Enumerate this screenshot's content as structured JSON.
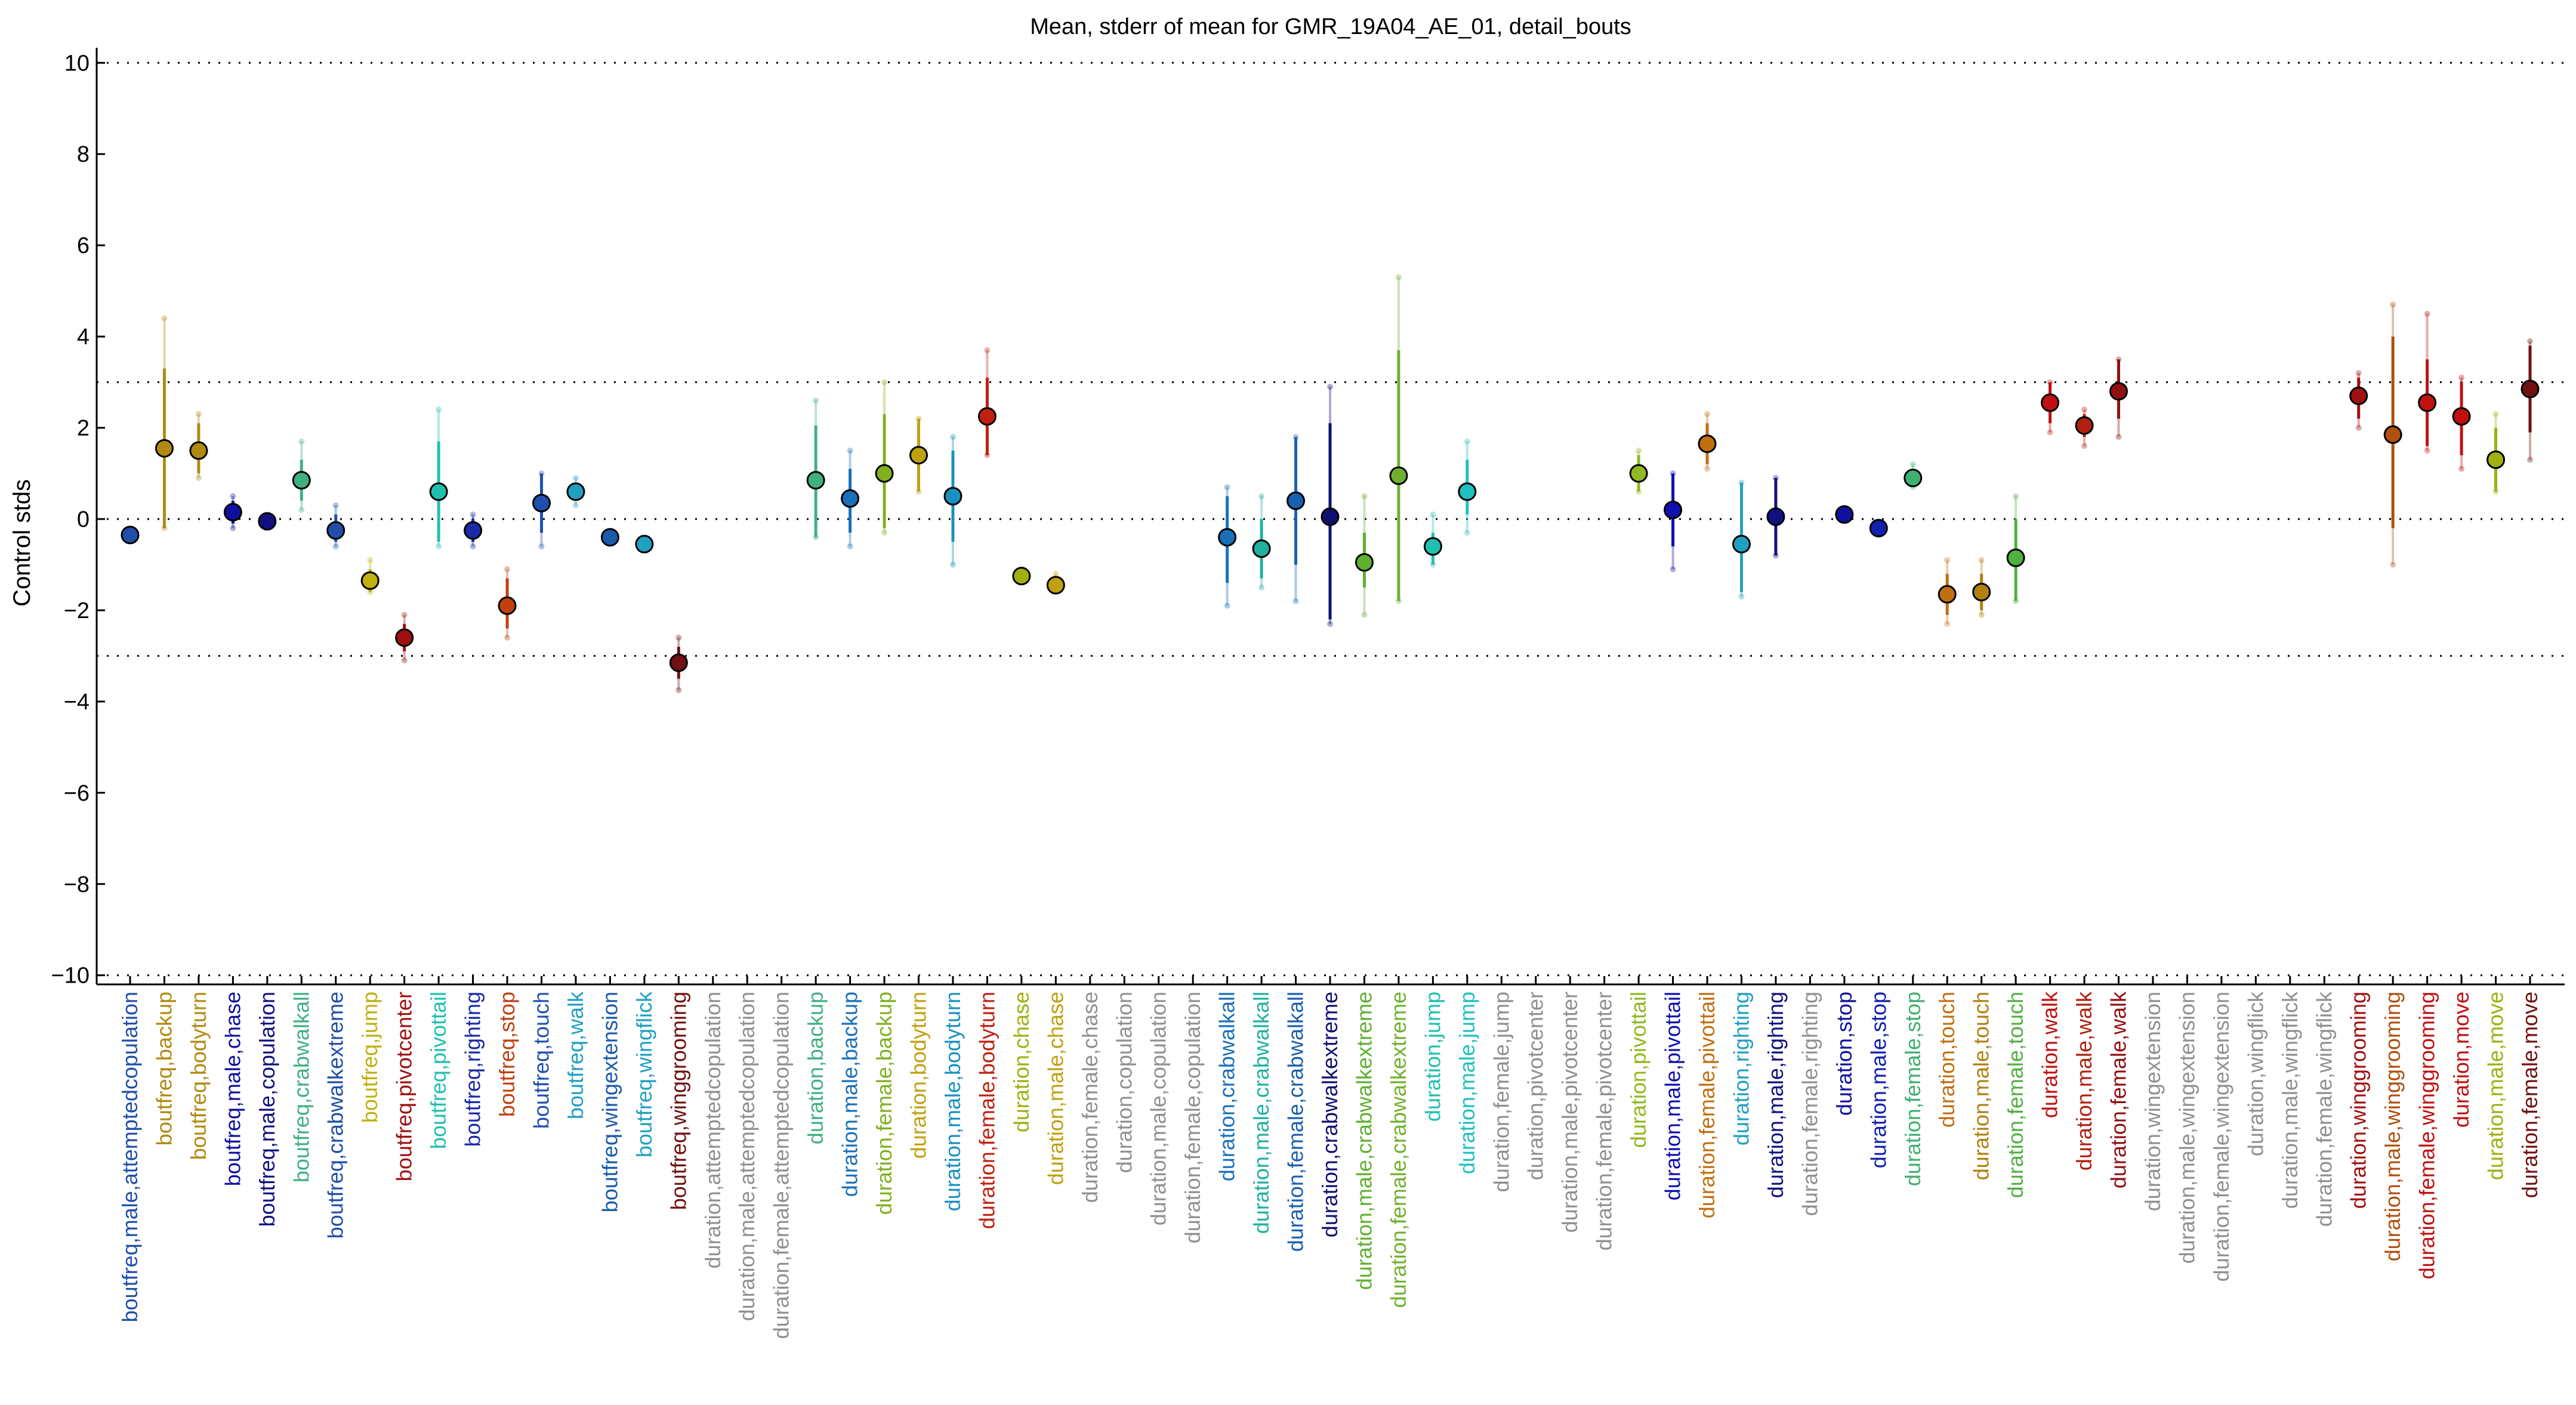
{
  "chart_data": {
    "type": "scatter",
    "title": "Mean, stderr of mean for GMR_19A04_AE_01, detail_bouts",
    "xlabel": "",
    "ylabel": "Control stds",
    "ylim": [
      -10.2,
      10.2
    ],
    "yticks": [
      10,
      8,
      6,
      4,
      2,
      0,
      -2,
      -4,
      -6,
      -8,
      -10
    ],
    "reference_lines": [
      10,
      3,
      0,
      -3,
      -10
    ],
    "grid": false,
    "legend": "none",
    "categories": [
      {
        "label": "boutfreq,male,attemptedcopulation",
        "color": "#1f4fa8",
        "mean": -0.35,
        "err_lo": -0.35,
        "err_hi": -0.35,
        "ci_lo": -0.35,
        "ci_hi": -0.35
      },
      {
        "label": "boutfreq,backup",
        "color": "#b08a10",
        "mean": 1.55,
        "err_lo": -0.2,
        "err_hi": 3.3,
        "ci_lo": -0.2,
        "ci_hi": 4.4
      },
      {
        "label": "boutfreq,bodyturn",
        "color": "#b08a10",
        "mean": 1.5,
        "err_lo": 1.0,
        "err_hi": 2.1,
        "ci_lo": 0.9,
        "ci_hi": 2.3
      },
      {
        "label": "boutfreq,male,chase",
        "color": "#1010a0",
        "mean": 0.15,
        "err_lo": -0.1,
        "err_hi": 0.4,
        "ci_lo": -0.2,
        "ci_hi": 0.5
      },
      {
        "label": "boutfreq,male,copulation",
        "color": "#101080",
        "mean": -0.05,
        "err_lo": -0.05,
        "err_hi": -0.05,
        "ci_lo": -0.05,
        "ci_hi": -0.05
      },
      {
        "label": "boutfreq,crabwalkall",
        "color": "#40b080",
        "mean": 0.85,
        "err_lo": 0.4,
        "err_hi": 1.3,
        "ci_lo": 0.2,
        "ci_hi": 1.7
      },
      {
        "label": "boutfreq,crabwalkextreme",
        "color": "#1f4fa8",
        "mean": -0.25,
        "err_lo": -0.5,
        "err_hi": 0.1,
        "ci_lo": -0.6,
        "ci_hi": 0.3
      },
      {
        "label": "boutfreq,jump",
        "color": "#c0b010",
        "mean": -1.35,
        "err_lo": -1.6,
        "err_hi": -1.1,
        "ci_lo": -1.6,
        "ci_hi": -0.9
      },
      {
        "label": "boutfreq,pivotcenter",
        "color": "#a01010",
        "mean": -2.6,
        "err_lo": -2.9,
        "err_hi": -2.3,
        "ci_lo": -3.1,
        "ci_hi": -2.1
      },
      {
        "label": "boutfreq,pivottail",
        "color": "#20c0b0",
        "mean": 0.6,
        "err_lo": -0.5,
        "err_hi": 1.7,
        "ci_lo": -0.6,
        "ci_hi": 2.4
      },
      {
        "label": "boutfreq,righting",
        "color": "#1a2aa8",
        "mean": -0.25,
        "err_lo": -0.5,
        "err_hi": 0.0,
        "ci_lo": -0.6,
        "ci_hi": 0.1
      },
      {
        "label": "boutfreq,stop",
        "color": "#c04010",
        "mean": -1.9,
        "err_lo": -2.4,
        "err_hi": -1.3,
        "ci_lo": -2.6,
        "ci_hi": -1.1
      },
      {
        "label": "boutfreq,touch",
        "color": "#1f50b0",
        "mean": 0.35,
        "err_lo": -0.3,
        "err_hi": 1.0,
        "ci_lo": -0.6,
        "ci_hi": 1.0
      },
      {
        "label": "boutfreq,walk",
        "color": "#20a0c0",
        "mean": 0.6,
        "err_lo": 0.4,
        "err_hi": 0.8,
        "ci_lo": 0.3,
        "ci_hi": 0.9
      },
      {
        "label": "boutfreq,wingextension",
        "color": "#1a5aa8",
        "mean": -0.4,
        "err_lo": -0.4,
        "err_hi": -0.4,
        "ci_lo": -0.4,
        "ci_hi": -0.4
      },
      {
        "label": "boutfreq,wingflick",
        "color": "#20a0c0",
        "mean": -0.55,
        "err_lo": -0.55,
        "err_hi": -0.55,
        "ci_lo": -0.55,
        "ci_hi": -0.55
      },
      {
        "label": "boutfreq,winggrooming",
        "color": "#701010",
        "mean": -3.15,
        "err_lo": -3.5,
        "err_hi": -2.8,
        "ci_lo": -3.75,
        "ci_hi": -2.6
      },
      {
        "label": "duration,attemptedcopulation",
        "color": "#909090",
        "mean": null
      },
      {
        "label": "duration,male,attemptedcopulation",
        "color": "#909090",
        "mean": null
      },
      {
        "label": "duration,female,attemptedcopulation",
        "color": "#909090",
        "mean": null
      },
      {
        "label": "duration,backup",
        "color": "#40b080",
        "mean": 0.85,
        "err_lo": -0.4,
        "err_hi": 2.05,
        "ci_lo": -0.4,
        "ci_hi": 2.6
      },
      {
        "label": "duration,male,backup",
        "color": "#1a70b8",
        "mean": 0.45,
        "err_lo": -0.3,
        "err_hi": 1.1,
        "ci_lo": -0.6,
        "ci_hi": 1.5
      },
      {
        "label": "duration,female,backup",
        "color": "#80b020",
        "mean": 1.0,
        "err_lo": -0.2,
        "err_hi": 2.3,
        "ci_lo": -0.3,
        "ci_hi": 3.0
      },
      {
        "label": "duration,bodyturn",
        "color": "#c0a010",
        "mean": 1.4,
        "err_lo": 0.6,
        "err_hi": 2.2,
        "ci_lo": 0.6,
        "ci_hi": 2.2
      },
      {
        "label": "duration,male,bodyturn",
        "color": "#1a90c0",
        "mean": 0.5,
        "err_lo": -0.5,
        "err_hi": 1.5,
        "ci_lo": -1.0,
        "ci_hi": 1.8
      },
      {
        "label": "duration,female,bodyturn",
        "color": "#c02010",
        "mean": 2.25,
        "err_lo": 1.4,
        "err_hi": 3.1,
        "ci_lo": 1.4,
        "ci_hi": 3.7
      },
      {
        "label": "duration,chase",
        "color": "#a0b010",
        "mean": -1.25,
        "err_lo": -1.25,
        "err_hi": -1.25,
        "ci_lo": -1.25,
        "ci_hi": -1.25
      },
      {
        "label": "duration,male,chase",
        "color": "#c0a010",
        "mean": -1.45,
        "err_lo": -1.5,
        "err_hi": -1.3,
        "ci_lo": -1.5,
        "ci_hi": -1.2
      },
      {
        "label": "duration,female,chase",
        "color": "#909090",
        "mean": null
      },
      {
        "label": "duration,copulation",
        "color": "#909090",
        "mean": null
      },
      {
        "label": "duration,male,copulation",
        "color": "#909090",
        "mean": null
      },
      {
        "label": "duration,female,copulation",
        "color": "#909090",
        "mean": null
      },
      {
        "label": "duration,crabwalkall",
        "color": "#1a70b8",
        "mean": -0.4,
        "err_lo": -1.4,
        "err_hi": 0.5,
        "ci_lo": -1.9,
        "ci_hi": 0.7
      },
      {
        "label": "duration,male,crabwalkall",
        "color": "#20b0a0",
        "mean": -0.65,
        "err_lo": -1.3,
        "err_hi": 0.0,
        "ci_lo": -1.5,
        "ci_hi": 0.5
      },
      {
        "label": "duration,female,crabwalkall",
        "color": "#1a60b0",
        "mean": 0.4,
        "err_lo": -1.0,
        "err_hi": 1.8,
        "ci_lo": -1.8,
        "ci_hi": 1.8
      },
      {
        "label": "duration,crabwalkextreme",
        "color": "#101070",
        "mean": 0.05,
        "err_lo": -2.2,
        "err_hi": 2.1,
        "ci_lo": -2.3,
        "ci_hi": 2.9
      },
      {
        "label": "duration,male,crabwalkextreme",
        "color": "#60b030",
        "mean": -0.95,
        "err_lo": -1.5,
        "err_hi": -0.3,
        "ci_lo": -2.1,
        "ci_hi": 0.5
      },
      {
        "label": "duration,female,crabwalkextreme",
        "color": "#70b030",
        "mean": 0.95,
        "err_lo": -1.8,
        "err_hi": 3.7,
        "ci_lo": -1.8,
        "ci_hi": 5.3
      },
      {
        "label": "duration,jump",
        "color": "#20c0b0",
        "mean": -0.6,
        "err_lo": -1.0,
        "err_hi": -0.3,
        "ci_lo": -1.0,
        "ci_hi": 0.1
      },
      {
        "label": "duration,male,jump",
        "color": "#20c0c0",
        "mean": 0.6,
        "err_lo": 0.1,
        "err_hi": 1.3,
        "ci_lo": -0.3,
        "ci_hi": 1.7
      },
      {
        "label": "duration,female,jump",
        "color": "#909090",
        "mean": null
      },
      {
        "label": "duration,pivotcenter",
        "color": "#909090",
        "mean": null
      },
      {
        "label": "duration,male,pivotcenter",
        "color": "#909090",
        "mean": null
      },
      {
        "label": "duration,female,pivotcenter",
        "color": "#909090",
        "mean": null
      },
      {
        "label": "duration,pivottail",
        "color": "#90b820",
        "mean": 1.0,
        "err_lo": 0.6,
        "err_hi": 1.4,
        "ci_lo": 0.6,
        "ci_hi": 1.5
      },
      {
        "label": "duration,male,pivottail",
        "color": "#1010b0",
        "mean": 0.2,
        "err_lo": -0.6,
        "err_hi": 1.0,
        "ci_lo": -1.1,
        "ci_hi": 1.0
      },
      {
        "label": "duration,female,pivottail",
        "color": "#c07010",
        "mean": 1.65,
        "err_lo": 1.2,
        "err_hi": 2.1,
        "ci_lo": 1.1,
        "ci_hi": 2.3
      },
      {
        "label": "duration,righting",
        "color": "#20a0c0",
        "mean": -0.55,
        "err_lo": -1.6,
        "err_hi": 0.8,
        "ci_lo": -1.7,
        "ci_hi": 0.8
      },
      {
        "label": "duration,male,righting",
        "color": "#101080",
        "mean": 0.05,
        "err_lo": -0.8,
        "err_hi": 0.9,
        "ci_lo": -0.8,
        "ci_hi": 0.9
      },
      {
        "label": "duration,female,righting",
        "color": "#909090",
        "mean": null
      },
      {
        "label": "duration,stop",
        "color": "#1010a0",
        "mean": 0.1,
        "err_lo": 0.1,
        "err_hi": 0.1,
        "ci_lo": 0.1,
        "ci_hi": 0.1
      },
      {
        "label": "duration,male,stop",
        "color": "#1020b0",
        "mean": -0.2,
        "err_lo": -0.2,
        "err_hi": -0.2,
        "ci_lo": -0.2,
        "ci_hi": -0.2
      },
      {
        "label": "duration,female,stop",
        "color": "#40b070",
        "mean": 0.9,
        "err_lo": 0.7,
        "err_hi": 1.1,
        "ci_lo": 0.7,
        "ci_hi": 1.2
      },
      {
        "label": "duration,touch",
        "color": "#c07010",
        "mean": -1.65,
        "err_lo": -2.1,
        "err_hi": -1.2,
        "ci_lo": -2.3,
        "ci_hi": -0.9
      },
      {
        "label": "duration,male,touch",
        "color": "#b08010",
        "mean": -1.6,
        "err_lo": -2.0,
        "err_hi": -1.2,
        "ci_lo": -2.1,
        "ci_hi": -0.9
      },
      {
        "label": "duration,female,touch",
        "color": "#50b040",
        "mean": -0.85,
        "err_lo": -1.8,
        "err_hi": 0.0,
        "ci_lo": -1.8,
        "ci_hi": 0.5
      },
      {
        "label": "duration,walk",
        "color": "#c01010",
        "mean": 2.55,
        "err_lo": 2.1,
        "err_hi": 3.0,
        "ci_lo": 1.9,
        "ci_hi": 3.0
      },
      {
        "label": "duration,male,walk",
        "color": "#b02010",
        "mean": 2.05,
        "err_lo": 1.8,
        "err_hi": 2.3,
        "ci_lo": 1.6,
        "ci_hi": 2.4
      },
      {
        "label": "duration,female,walk",
        "color": "#901010",
        "mean": 2.8,
        "err_lo": 2.2,
        "err_hi": 3.5,
        "ci_lo": 1.8,
        "ci_hi": 3.5
      },
      {
        "label": "duration,wingextension",
        "color": "#909090",
        "mean": null
      },
      {
        "label": "duration,male,wingextension",
        "color": "#909090",
        "mean": null
      },
      {
        "label": "duration,female,wingextension",
        "color": "#909090",
        "mean": null
      },
      {
        "label": "duration,wingflick",
        "color": "#909090",
        "mean": null
      },
      {
        "label": "duration,male,wingflick",
        "color": "#909090",
        "mean": null
      },
      {
        "label": "duration,female,wingflick",
        "color": "#909090",
        "mean": null
      },
      {
        "label": "duration,winggrooming",
        "color": "#a01010",
        "mean": 2.7,
        "err_lo": 2.2,
        "err_hi": 3.1,
        "ci_lo": 2.0,
        "ci_hi": 3.2
      },
      {
        "label": "duration,male,winggrooming",
        "color": "#b05010",
        "mean": 1.85,
        "err_lo": -0.2,
        "err_hi": 4.0,
        "ci_lo": -1.0,
        "ci_hi": 4.7
      },
      {
        "label": "duration,female,winggrooming",
        "color": "#c01010",
        "mean": 2.55,
        "err_lo": 1.6,
        "err_hi": 3.5,
        "ci_lo": 1.5,
        "ci_hi": 4.5
      },
      {
        "label": "duration,move",
        "color": "#c01010",
        "mean": 2.25,
        "err_lo": 1.4,
        "err_hi": 3.0,
        "ci_lo": 1.1,
        "ci_hi": 3.1
      },
      {
        "label": "duration,male,move",
        "color": "#a0b010",
        "mean": 1.3,
        "err_lo": 0.6,
        "err_hi": 2.0,
        "ci_lo": 0.6,
        "ci_hi": 2.3
      },
      {
        "label": "duration,female,move",
        "color": "#701010",
        "mean": 2.85,
        "err_lo": 1.9,
        "err_hi": 3.8,
        "ci_lo": 1.3,
        "ci_hi": 3.9
      }
    ]
  }
}
